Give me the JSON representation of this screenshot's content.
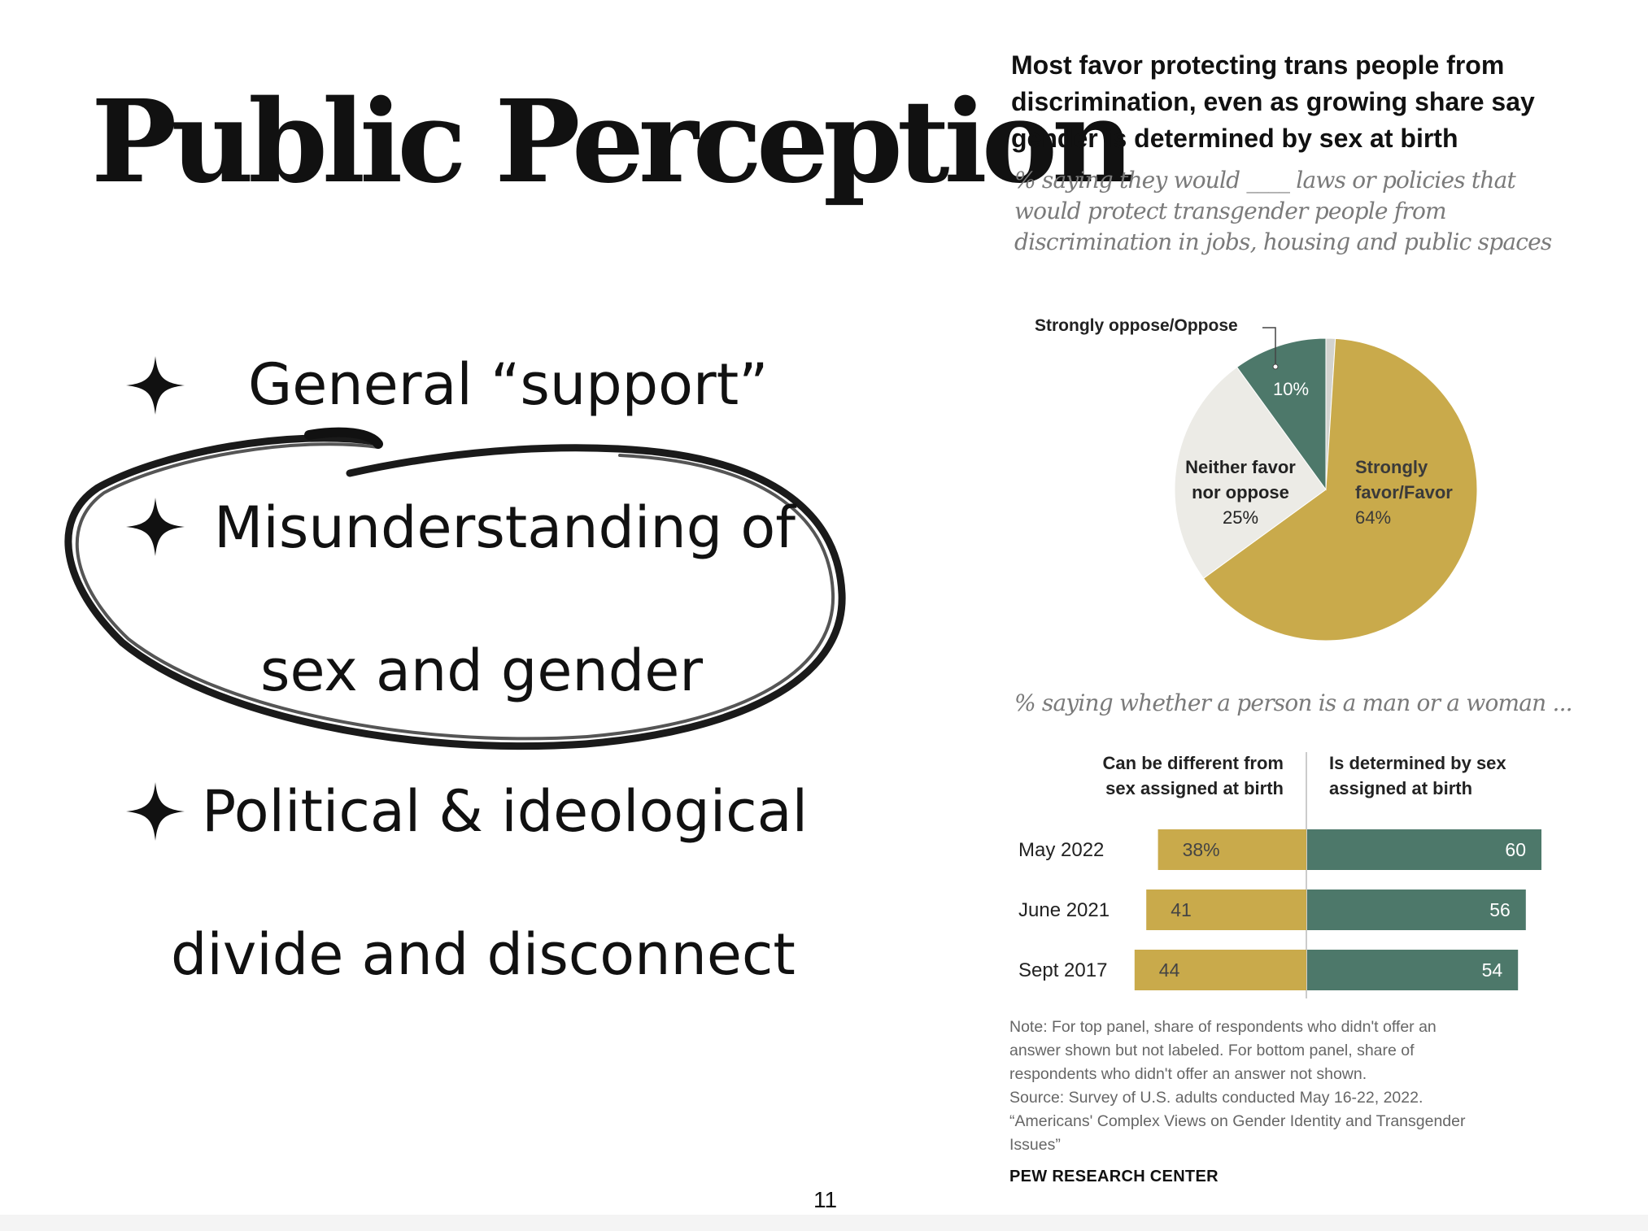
{
  "slide": {
    "title": "Public Perception",
    "bullets": [
      "General “support”",
      "Misunderstanding of",
      "sex and gender",
      "Political & ideological",
      "divide and disconnect"
    ],
    "bullet_icon": "four-point-star-icon",
    "highlight_icon": "hand-drawn-ellipse-icon",
    "page_number": "11"
  },
  "chart": {
    "title": "Most favor protecting trans people from discrimination, even as growing share say gender is determined by sex at birth",
    "subtitle_lines": [
      "% saying they would ____ laws or policies that",
      "would protect transgender people from",
      "discrimination in jobs, housing and public spaces"
    ],
    "subtitle2": "% saying whether a person is a man or a woman ...",
    "note_lines": [
      "Note: For top panel, share of respondents who didn't offer an",
      "answer shown but not labeled. For bottom panel, share of",
      "respondents who didn't offer an answer not shown.",
      "Source: Survey of U.S. adults conducted May 16-22, 2022.",
      "“Americans' Complex Views on Gender Identity and Transgender",
      "Issues”"
    ],
    "source_brand": "PEW RESEARCH CENTER"
  },
  "chart_data": [
    {
      "type": "pie",
      "slices": [
        {
          "label_lines": [
            "Strongly",
            "favor/Favor"
          ],
          "value_label": "64%",
          "value": 64,
          "color": "#c9aa4b"
        },
        {
          "label_lines": [
            "Neither favor",
            "nor oppose"
          ],
          "value_label": "25%",
          "value": 25,
          "color": "#ecebe6"
        },
        {
          "label_lines": [],
          "value_label": "10%",
          "value": 10,
          "color": "#4d786a"
        },
        {
          "label_lines": [],
          "value_label": "",
          "value": 1,
          "color": "#d3d3cf"
        }
      ],
      "callout_label": "Strongly oppose/Oppose"
    },
    {
      "type": "bar",
      "orientation": "horizontal-diverging",
      "left_header_lines": [
        "Can be different from",
        "sex assigned at birth"
      ],
      "right_header_lines": [
        "Is determined by sex",
        "assigned at birth"
      ],
      "categories": [
        "May 2022",
        "June 2021",
        "Sept 2017"
      ],
      "series": [
        {
          "name": "Can be different from sex assigned at birth",
          "values": [
            38,
            41,
            44
          ],
          "labels": [
            "38%",
            "41",
            "44"
          ],
          "color": "#c9aa4b"
        },
        {
          "name": "Is determined by sex assigned at birth",
          "values": [
            60,
            56,
            54
          ],
          "labels": [
            "60",
            "56",
            "54"
          ],
          "color": "#4d786a"
        }
      ]
    }
  ]
}
